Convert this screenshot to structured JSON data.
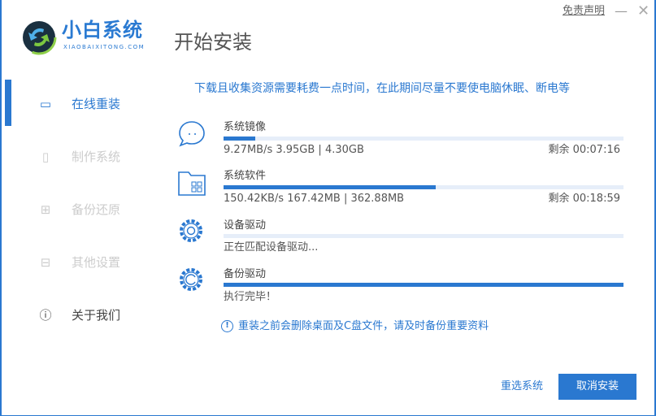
{
  "header": {
    "brand": "小白系统",
    "brand_url_text": "XIAOBAIXITONG.COM",
    "title": "开始安装",
    "disclaimer": "免责声明",
    "minimize": "—",
    "close": "✕"
  },
  "sidebar": {
    "items": [
      {
        "label": "在线重装",
        "icon": "monitor-icon",
        "active": true
      },
      {
        "label": "制作系统",
        "icon": "usb-icon"
      },
      {
        "label": "备份还原",
        "icon": "grid-icon"
      },
      {
        "label": "其他设置",
        "icon": "toolbox-icon"
      },
      {
        "label": "关于我们",
        "icon": "info-icon"
      }
    ]
  },
  "main": {
    "notice": "下载且收集资源需要耗费一点时间，在此期间尽量不要使电脑休眠、断电等",
    "items": [
      {
        "label": "系统镜像",
        "icon": "chat-bubble-icon",
        "progress": 8,
        "status": "9.27MB/s 3.95GB | 4.30GB",
        "remaining": "剩余 00:07:16"
      },
      {
        "label": "系统软件",
        "icon": "folder-apps-icon",
        "progress": 53,
        "status": "150.42KB/s 167.42MB | 362.88MB",
        "remaining": "剩余 00:18:59"
      },
      {
        "label": "设备驱动",
        "icon": "gear-icon",
        "progress": 0,
        "status": "正在匹配设备驱动..."
      },
      {
        "label": "备份驱动",
        "icon": "gear-refresh-icon",
        "progress": 100,
        "status": "执行完毕！"
      }
    ],
    "warning": "重装之前会删除桌面及C盘文件，请及时备份重要资料",
    "reselect": "重选系统",
    "cancel": "取消安装"
  },
  "colors": {
    "accent": "#2a78d0",
    "track": "#e6eef9"
  }
}
